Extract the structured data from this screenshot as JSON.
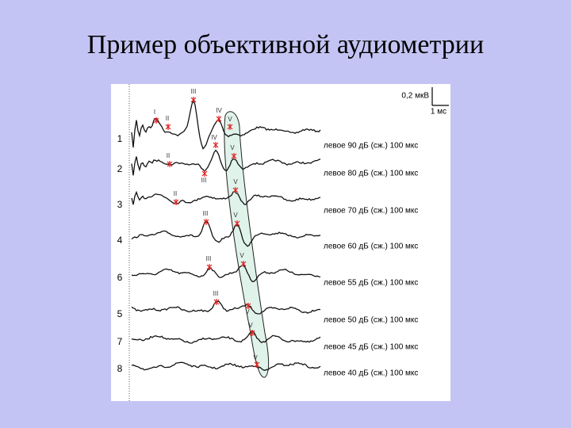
{
  "title": "Пример объективной аудиометрии",
  "figure": {
    "scale_voltage": "0,2 мкВ",
    "scale_time": "1 мс",
    "traces": [
      {
        "number": "1",
        "label": "левое 90 дБ (сж.) 100 мкс",
        "peaks": [
          "I",
          "II",
          "III",
          "IV",
          "V"
        ]
      },
      {
        "number": "2",
        "label": "левое 80 дБ (сж.) 100 мкс",
        "peaks": [
          "II",
          "III",
          "IV",
          "V"
        ]
      },
      {
        "number": "3",
        "label": "левое 70 дБ (сж.) 100 мкс",
        "peaks": [
          "II",
          "V"
        ]
      },
      {
        "number": "4",
        "label": "левое 60 дБ (сж.) 100 мкс",
        "peaks": [
          "III",
          "V"
        ]
      },
      {
        "number": "6",
        "label": "левое 55 дБ (сж.) 100 мкс",
        "peaks": [
          "III",
          "V"
        ]
      },
      {
        "number": "5",
        "label": "левое 50 дБ (сж.) 100 мкс",
        "peaks": [
          "III",
          "V"
        ]
      },
      {
        "number": "7",
        "label": "левое 45 дБ (сж.) 100 мкс",
        "peaks": [
          "V"
        ]
      },
      {
        "number": "8",
        "label": "левое 40 дБ (сж.) 100 мкс",
        "peaks": [
          "V"
        ]
      }
    ]
  }
}
